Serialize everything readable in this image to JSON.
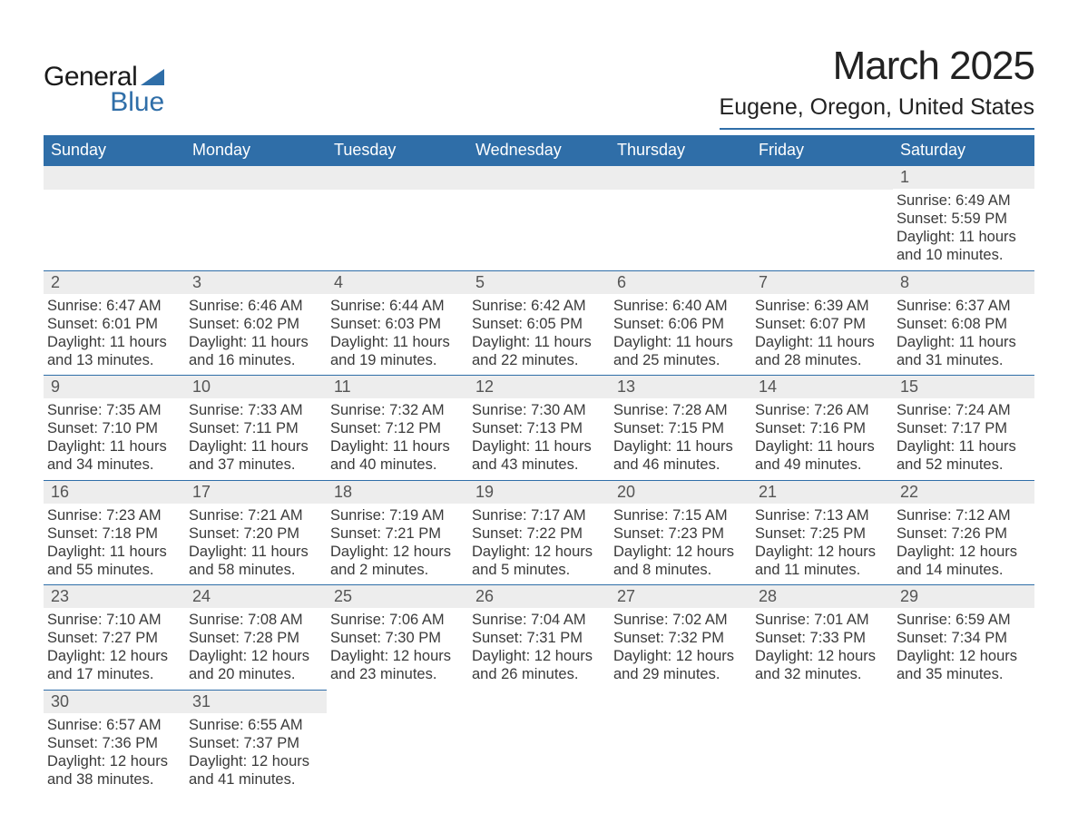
{
  "brand": {
    "word1": "General",
    "word2": "Blue",
    "sail_color": "#2f6ea8"
  },
  "title": "March 2025",
  "subtitle": "Eugene, Oregon, United States",
  "colors": {
    "header_bg": "#2f6ea8",
    "header_text": "#ffffff",
    "daynum_bg": "#ededed",
    "rule": "#2f6ea8",
    "body_text": "#3a3a3a",
    "page_bg": "#ffffff"
  },
  "fonts": {
    "family": "Arial, Helvetica, sans-serif",
    "title_pt": 33,
    "subtitle_pt": 19,
    "header_pt": 14,
    "cell_pt": 12
  },
  "layout": {
    "columns": 7,
    "rows": 6,
    "first_weekday": "Sunday"
  },
  "weekdays": [
    "Sunday",
    "Monday",
    "Tuesday",
    "Wednesday",
    "Thursday",
    "Friday",
    "Saturday"
  ],
  "cells": [
    {
      "blank": true
    },
    {
      "blank": true
    },
    {
      "blank": true
    },
    {
      "blank": true
    },
    {
      "blank": true
    },
    {
      "blank": true
    },
    {
      "day": 1,
      "sunrise": "6:49 AM",
      "sunset": "5:59 PM",
      "daylight": "11 hours and 10 minutes."
    },
    {
      "day": 2,
      "sunrise": "6:47 AM",
      "sunset": "6:01 PM",
      "daylight": "11 hours and 13 minutes."
    },
    {
      "day": 3,
      "sunrise": "6:46 AM",
      "sunset": "6:02 PM",
      "daylight": "11 hours and 16 minutes."
    },
    {
      "day": 4,
      "sunrise": "6:44 AM",
      "sunset": "6:03 PM",
      "daylight": "11 hours and 19 minutes."
    },
    {
      "day": 5,
      "sunrise": "6:42 AM",
      "sunset": "6:05 PM",
      "daylight": "11 hours and 22 minutes."
    },
    {
      "day": 6,
      "sunrise": "6:40 AM",
      "sunset": "6:06 PM",
      "daylight": "11 hours and 25 minutes."
    },
    {
      "day": 7,
      "sunrise": "6:39 AM",
      "sunset": "6:07 PM",
      "daylight": "11 hours and 28 minutes."
    },
    {
      "day": 8,
      "sunrise": "6:37 AM",
      "sunset": "6:08 PM",
      "daylight": "11 hours and 31 minutes."
    },
    {
      "day": 9,
      "sunrise": "7:35 AM",
      "sunset": "7:10 PM",
      "daylight": "11 hours and 34 minutes."
    },
    {
      "day": 10,
      "sunrise": "7:33 AM",
      "sunset": "7:11 PM",
      "daylight": "11 hours and 37 minutes."
    },
    {
      "day": 11,
      "sunrise": "7:32 AM",
      "sunset": "7:12 PM",
      "daylight": "11 hours and 40 minutes."
    },
    {
      "day": 12,
      "sunrise": "7:30 AM",
      "sunset": "7:13 PM",
      "daylight": "11 hours and 43 minutes."
    },
    {
      "day": 13,
      "sunrise": "7:28 AM",
      "sunset": "7:15 PM",
      "daylight": "11 hours and 46 minutes."
    },
    {
      "day": 14,
      "sunrise": "7:26 AM",
      "sunset": "7:16 PM",
      "daylight": "11 hours and 49 minutes."
    },
    {
      "day": 15,
      "sunrise": "7:24 AM",
      "sunset": "7:17 PM",
      "daylight": "11 hours and 52 minutes."
    },
    {
      "day": 16,
      "sunrise": "7:23 AM",
      "sunset": "7:18 PM",
      "daylight": "11 hours and 55 minutes."
    },
    {
      "day": 17,
      "sunrise": "7:21 AM",
      "sunset": "7:20 PM",
      "daylight": "11 hours and 58 minutes."
    },
    {
      "day": 18,
      "sunrise": "7:19 AM",
      "sunset": "7:21 PM",
      "daylight": "12 hours and 2 minutes."
    },
    {
      "day": 19,
      "sunrise": "7:17 AM",
      "sunset": "7:22 PM",
      "daylight": "12 hours and 5 minutes."
    },
    {
      "day": 20,
      "sunrise": "7:15 AM",
      "sunset": "7:23 PM",
      "daylight": "12 hours and 8 minutes."
    },
    {
      "day": 21,
      "sunrise": "7:13 AM",
      "sunset": "7:25 PM",
      "daylight": "12 hours and 11 minutes."
    },
    {
      "day": 22,
      "sunrise": "7:12 AM",
      "sunset": "7:26 PM",
      "daylight": "12 hours and 14 minutes."
    },
    {
      "day": 23,
      "sunrise": "7:10 AM",
      "sunset": "7:27 PM",
      "daylight": "12 hours and 17 minutes."
    },
    {
      "day": 24,
      "sunrise": "7:08 AM",
      "sunset": "7:28 PM",
      "daylight": "12 hours and 20 minutes."
    },
    {
      "day": 25,
      "sunrise": "7:06 AM",
      "sunset": "7:30 PM",
      "daylight": "12 hours and 23 minutes."
    },
    {
      "day": 26,
      "sunrise": "7:04 AM",
      "sunset": "7:31 PM",
      "daylight": "12 hours and 26 minutes."
    },
    {
      "day": 27,
      "sunrise": "7:02 AM",
      "sunset": "7:32 PM",
      "daylight": "12 hours and 29 minutes."
    },
    {
      "day": 28,
      "sunrise": "7:01 AM",
      "sunset": "7:33 PM",
      "daylight": "12 hours and 32 minutes."
    },
    {
      "day": 29,
      "sunrise": "6:59 AM",
      "sunset": "7:34 PM",
      "daylight": "12 hours and 35 minutes."
    },
    {
      "day": 30,
      "sunrise": "6:57 AM",
      "sunset": "7:36 PM",
      "daylight": "12 hours and 38 minutes."
    },
    {
      "day": 31,
      "sunrise": "6:55 AM",
      "sunset": "7:37 PM",
      "daylight": "12 hours and 41 minutes."
    },
    {
      "blank": true
    },
    {
      "blank": true
    },
    {
      "blank": true
    },
    {
      "blank": true
    },
    {
      "blank": true
    }
  ],
  "labels": {
    "sunrise": "Sunrise:",
    "sunset": "Sunset:",
    "daylight": "Daylight:"
  }
}
